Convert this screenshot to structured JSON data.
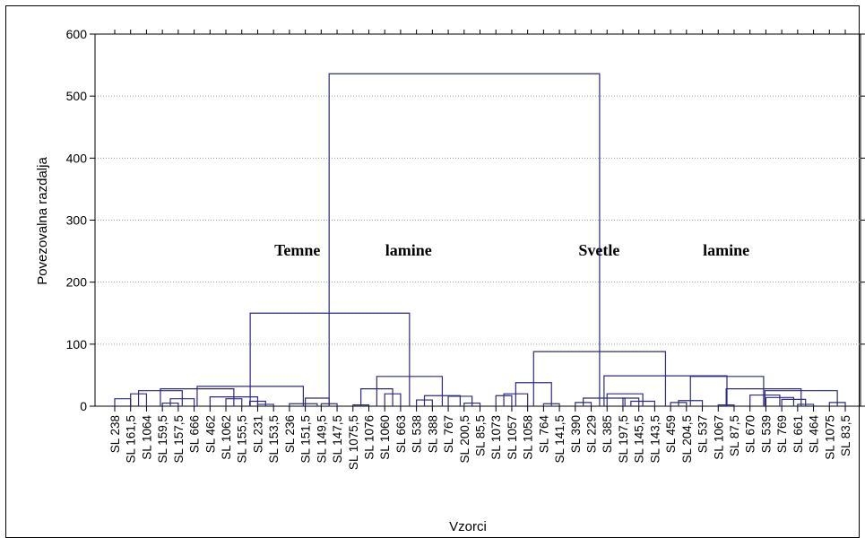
{
  "chart_data": {
    "type": "dendrogram",
    "xlabel": "Vzorci",
    "ylabel": "Povezovalna razdalja",
    "ylim": [
      0,
      600
    ],
    "yticks": [
      0,
      100,
      200,
      300,
      400,
      500,
      600
    ],
    "grid": true,
    "leaves": [
      "SL 238",
      "SL 161,5",
      "SL 1064",
      "SL 159,5",
      "SL 157,5",
      "SL 666",
      "SL 462",
      "SL 1062",
      "SL 155,5",
      "SL 231",
      "SL 153,5",
      "SL 236",
      "SL 151,5",
      "SL 149,5",
      "SL 147,5",
      "SL 1075,5",
      "SL 1076",
      "SL 1060",
      "SL 663",
      "SL 538",
      "SL 388",
      "SL 767",
      "SL 200,5",
      "SL 85,5",
      "SL 1073",
      "SL 1057",
      "SL 1058",
      "SL 764",
      "SL 141,5",
      "SL 390",
      "SL 229",
      "SL 385",
      "SL 197,5",
      "SL 145,5",
      "SL 143,5",
      "SL 459",
      "SL 204,5",
      "SL 537",
      "SL 1067",
      "SL 87,5",
      "SL 670",
      "SL 539",
      "SL 769",
      "SL 661",
      "SL 464",
      "SL 1075",
      "SL 83,5"
    ],
    "links": [
      {
        "a": 0,
        "b": 1,
        "h": 12
      },
      {
        "a": 1,
        "b": 2,
        "h": 20
      },
      {
        "a": 3,
        "b": 4,
        "h": 5
      },
      {
        "a": 3.5,
        "b": 5,
        "h": 12
      },
      {
        "a": 1.5,
        "b": 4.25,
        "h": 25
      },
      {
        "a": 7,
        "b": 8,
        "h": 12
      },
      {
        "a": 9,
        "b": 10,
        "h": 3
      },
      {
        "a": 8.5,
        "b": 9.5,
        "h": 8
      },
      {
        "a": 6,
        "b": 9,
        "h": 15
      },
      {
        "a": 2.875,
        "b": 7.5,
        "h": 28
      },
      {
        "a": 13,
        "b": 14,
        "h": 4
      },
      {
        "a": 12,
        "b": 13.5,
        "h": 13
      },
      {
        "a": 11,
        "b": 12.75,
        "h": 4
      },
      {
        "a": 5.19,
        "b": 11.875,
        "h": 32
      },
      {
        "a": 15,
        "b": 16,
        "h": 2
      },
      {
        "a": 17,
        "b": 18,
        "h": 20
      },
      {
        "a": 15.5,
        "b": 17.5,
        "h": 28
      },
      {
        "a": 22,
        "b": 23,
        "h": 5
      },
      {
        "a": 21,
        "b": 22.5,
        "h": 16
      },
      {
        "a": 19,
        "b": 20,
        "h": 10
      },
      {
        "a": 19.5,
        "b": 21.75,
        "h": 17
      },
      {
        "a": 16.5,
        "b": 20.625,
        "h": 48
      },
      {
        "a": 8.53,
        "b": 18.56,
        "h": 150
      },
      {
        "a": 24,
        "b": 25,
        "h": 17
      },
      {
        "a": 24.5,
        "b": 26,
        "h": 20
      },
      {
        "a": 27,
        "b": 28,
        "h": 4
      },
      {
        "a": 25.25,
        "b": 27.5,
        "h": 38
      },
      {
        "a": 32,
        "b": 33,
        "h": 13
      },
      {
        "a": 32.5,
        "b": 34,
        "h": 8
      },
      {
        "a": 31,
        "b": 33.25,
        "h": 20
      },
      {
        "a": 29,
        "b": 30,
        "h": 6
      },
      {
        "a": 29.5,
        "b": 32.125,
        "h": 13
      },
      {
        "a": 35,
        "b": 36,
        "h": 6
      },
      {
        "a": 35.5,
        "b": 37,
        "h": 9
      },
      {
        "a": 38,
        "b": 39,
        "h": 2
      },
      {
        "a": 43,
        "b": 44,
        "h": 3
      },
      {
        "a": 42,
        "b": 43.5,
        "h": 11
      },
      {
        "a": 41,
        "b": 42.75,
        "h": 14
      },
      {
        "a": 40,
        "b": 41.875,
        "h": 18
      },
      {
        "a": 45,
        "b": 46,
        "h": 6
      },
      {
        "a": 40.94,
        "b": 45.5,
        "h": 25
      },
      {
        "a": 38.5,
        "b": 43.22,
        "h": 28
      },
      {
        "a": 36.25,
        "b": 40.86,
        "h": 48
      },
      {
        "a": 30.81,
        "b": 38.55,
        "h": 49
      },
      {
        "a": 26.375,
        "b": 34.68,
        "h": 88
      },
      {
        "a": 13.5,
        "b": 30.53,
        "h": 536
      }
    ],
    "annotations": [
      {
        "text": "Temne",
        "x": 11.5,
        "y": 250
      },
      {
        "text": "lamine",
        "x": 18.5,
        "y": 250
      },
      {
        "text": "Svetle",
        "x": 30.5,
        "y": 250
      },
      {
        "text": "lamine",
        "x": 38.5,
        "y": 250
      }
    ],
    "colors": {
      "line": "#2b2b7f",
      "grid": "#9a9a9a",
      "axis": "#000000",
      "annotation": "#000000"
    }
  }
}
